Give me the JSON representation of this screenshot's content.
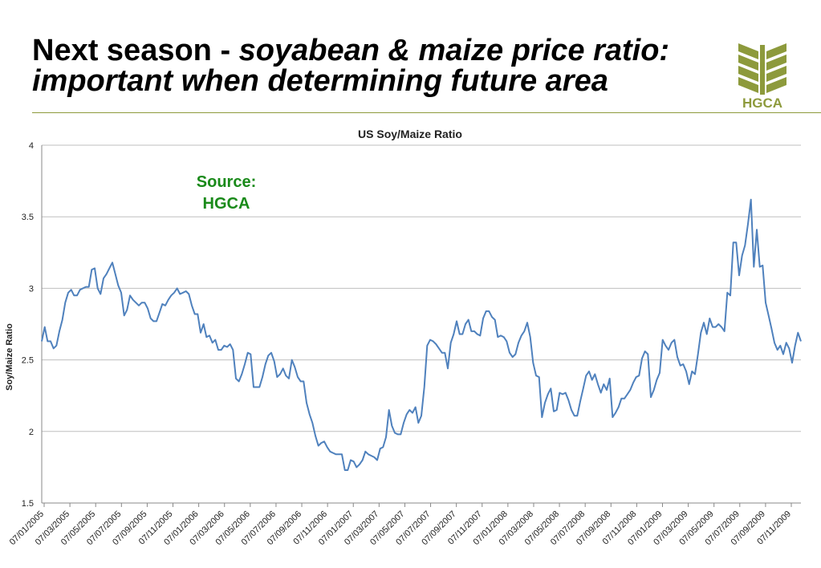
{
  "header": {
    "title_bold": "Next season - ",
    "title_italic": "soyabean & maize price ratio:",
    "title_line2": "important when determining future area"
  },
  "logo": {
    "text": "HGCA",
    "color": "#8d9a3c"
  },
  "colors": {
    "line": "#4f81bd",
    "grid": "#bfbfbf",
    "source": "#1a8a1a",
    "accent": "#8d9a3c"
  },
  "chart_data": {
    "type": "line",
    "title": "US Soy/Maize Ratio",
    "xlabel": "",
    "ylabel": "Soy/Maize Ratio",
    "ylim": [
      1.5,
      4
    ],
    "yticks": [
      1.5,
      2,
      2.5,
      3,
      3.5,
      4
    ],
    "xticks": [
      "07/01/2005",
      "07/03/2005",
      "07/05/2005",
      "07/07/2005",
      "07/09/2005",
      "07/11/2005",
      "07/01/2006",
      "07/03/2006",
      "07/05/2006",
      "07/07/2006",
      "07/09/2006",
      "07/11/2006",
      "07/01/2007",
      "07/03/2007",
      "07/05/2007",
      "07/07/2007",
      "07/09/2007",
      "07/11/2007",
      "07/01/2008",
      "07/03/2008",
      "07/05/2008",
      "07/07/2008",
      "07/09/2008",
      "07/11/2008",
      "07/01/2009",
      "07/03/2009",
      "07/05/2009",
      "07/07/2009",
      "07/09/2009",
      "07/11/2009"
    ],
    "grid": true,
    "legend": "none",
    "annotation": [
      "Source:",
      "HGCA"
    ],
    "series": [
      {
        "values": [
          2.63,
          2.73,
          2.63,
          2.63,
          2.58,
          2.6,
          2.7,
          2.78,
          2.9,
          2.97,
          2.99,
          2.95,
          2.95,
          2.99,
          3.0,
          3.01,
          3.01,
          3.13,
          3.14,
          3.0,
          2.96,
          3.07,
          3.1,
          3.14,
          3.18,
          3.1,
          3.02,
          2.97,
          2.81,
          2.85,
          2.95,
          2.92,
          2.9,
          2.88,
          2.9,
          2.9,
          2.86,
          2.79,
          2.77,
          2.77,
          2.83,
          2.89,
          2.88,
          2.92,
          2.95,
          2.97,
          3.0,
          2.96,
          2.97,
          2.98,
          2.96,
          2.88,
          2.82,
          2.82,
          2.69,
          2.75,
          2.66,
          2.67,
          2.62,
          2.64,
          2.57,
          2.57,
          2.6,
          2.59,
          2.61,
          2.57,
          2.37,
          2.35,
          2.4,
          2.47,
          2.55,
          2.54,
          2.31,
          2.31,
          2.31,
          2.38,
          2.47,
          2.53,
          2.55,
          2.49,
          2.38,
          2.4,
          2.44,
          2.39,
          2.37,
          2.5,
          2.45,
          2.38,
          2.35,
          2.35,
          2.2,
          2.12,
          2.06,
          1.97,
          1.9,
          1.92,
          1.93,
          1.89,
          1.86,
          1.85,
          1.84,
          1.84,
          1.84,
          1.73,
          1.73,
          1.8,
          1.79,
          1.75,
          1.77,
          1.8,
          1.86,
          1.84,
          1.83,
          1.82,
          1.8,
          1.88,
          1.89,
          1.96,
          2.15,
          2.04,
          1.99,
          1.98,
          1.98,
          2.06,
          2.12,
          2.15,
          2.13,
          2.17,
          2.06,
          2.11,
          2.31,
          2.6,
          2.64,
          2.63,
          2.61,
          2.58,
          2.55,
          2.55,
          2.44,
          2.62,
          2.68,
          2.77,
          2.68,
          2.68,
          2.75,
          2.78,
          2.7,
          2.7,
          2.68,
          2.67,
          2.79,
          2.84,
          2.84,
          2.8,
          2.78,
          2.66,
          2.67,
          2.66,
          2.63,
          2.55,
          2.52,
          2.54,
          2.62,
          2.67,
          2.7,
          2.76,
          2.66,
          2.48,
          2.39,
          2.38,
          2.1,
          2.2,
          2.26,
          2.3,
          2.14,
          2.15,
          2.27,
          2.26,
          2.27,
          2.22,
          2.15,
          2.11,
          2.11,
          2.21,
          2.3,
          2.39,
          2.42,
          2.36,
          2.4,
          2.33,
          2.27,
          2.33,
          2.29,
          2.37,
          2.1,
          2.13,
          2.17,
          2.23,
          2.23,
          2.26,
          2.29,
          2.34,
          2.38,
          2.39,
          2.51,
          2.56,
          2.54,
          2.24,
          2.29,
          2.36,
          2.41,
          2.64,
          2.6,
          2.57,
          2.62,
          2.64,
          2.52,
          2.46,
          2.47,
          2.42,
          2.33,
          2.42,
          2.4,
          2.54,
          2.69,
          2.76,
          2.68,
          2.79,
          2.73,
          2.73,
          2.75,
          2.73,
          2.7,
          2.97,
          2.95,
          3.32,
          3.32,
          3.09,
          3.23,
          3.3,
          3.45,
          3.62,
          3.15,
          3.41,
          3.15,
          3.16,
          2.9,
          2.81,
          2.72,
          2.62,
          2.57,
          2.6,
          2.54,
          2.62,
          2.58,
          2.48,
          2.6,
          2.69,
          2.63
        ]
      }
    ]
  }
}
